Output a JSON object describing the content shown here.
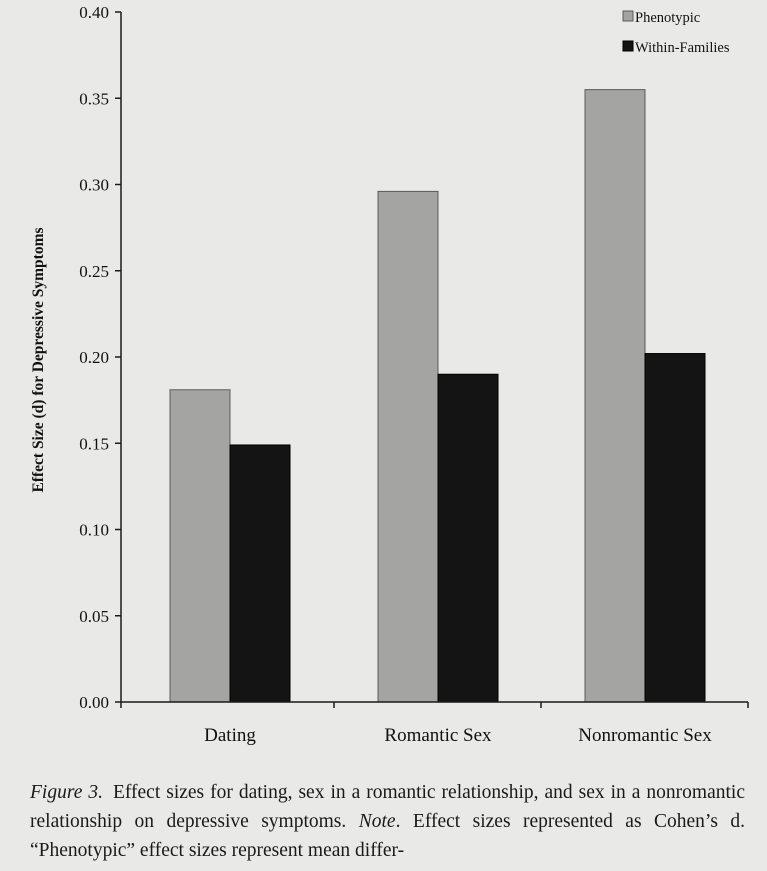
{
  "chart_data": {
    "type": "bar",
    "categories": [
      "Dating",
      "Romantic Sex",
      "Nonromantic Sex"
    ],
    "series": [
      {
        "name": "Phenotypic",
        "values": [
          0.181,
          0.296,
          0.355
        ],
        "color": "#a4a4a2"
      },
      {
        "name": "Within-Families",
        "values": [
          0.149,
          0.19,
          0.202
        ],
        "color": "#141414"
      }
    ],
    "title": "",
    "xlabel": "",
    "ylabel": "Effect Size (d) for Depressive Symptoms",
    "ylim": [
      0,
      0.4
    ],
    "yticks": [
      "0.00",
      "0.05",
      "0.10",
      "0.15",
      "0.20",
      "0.25",
      "0.30",
      "0.35",
      "0.40"
    ],
    "grid": false,
    "legend_position": "top-right"
  },
  "caption": {
    "lead": "Figure 3.",
    "part1": "Effect sizes for dating, sex in a romantic relationship, and sex in a nonromantic relationship on depressive symptoms.",
    "note_label": "Note",
    "part2": ". Effect sizes represented as Cohen’s d. “Phenotypic” effect sizes represent mean differ-"
  }
}
